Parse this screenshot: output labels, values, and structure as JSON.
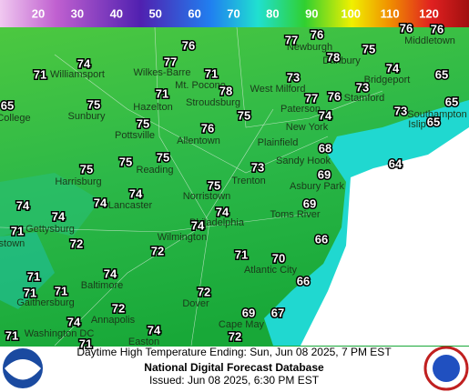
{
  "legend": {
    "values": [
      20,
      30,
      40,
      50,
      60,
      70,
      80,
      90,
      100,
      110,
      120
    ]
  },
  "temperatures": [
    76,
    77,
    76,
    76,
    76,
    75,
    74,
    77,
    71,
    71,
    78,
    73,
    74,
    73,
    65,
    78,
    71,
    77,
    76,
    65,
    75,
    74,
    73,
    65,
    75,
    75,
    76,
    65,
    68,
    75,
    75,
    75,
    64,
    73,
    69,
    74,
    74,
    75,
    74,
    74,
    74,
    69,
    74,
    71,
    66,
    72,
    72,
    71,
    70,
    71,
    74,
    66,
    71,
    71,
    72,
    72,
    69,
    67,
    74,
    74,
    72,
    71,
    71
  ],
  "cities": [
    "Newburgh",
    "Middletown",
    "Danbury",
    "Williamsport",
    "Wilkes-Barre",
    "Mt. Pocono",
    "West Milford",
    "Bridgeport",
    "College",
    "Hazelton",
    "Stroudsburg",
    "Paterson",
    "Stamford",
    "Islip",
    "Southampton",
    "Sunbury",
    "Pottsville",
    "Allentown",
    "New York",
    "Plainfield",
    "Sandy Hook",
    "Reading",
    "Harrisburg",
    "Trenton",
    "Asbury Park",
    "Lancaster",
    "Norristown",
    "Toms River",
    "Gettysburg",
    "Philadelphia",
    "erstown",
    "Wilmington",
    "Atlantic City",
    "Baltimore",
    "Gaithersburg",
    "Dover",
    "Annapolis",
    "Cape May",
    "Washington DC",
    "Easton"
  ],
  "footer": {
    "title": "Daytime High Temperature Ending: Sun, Jun 08 2025, 7 PM EST",
    "database": "National Digital Forecast Database",
    "issued": "Issued: Jun 08 2025, 6:30 PM EST"
  }
}
